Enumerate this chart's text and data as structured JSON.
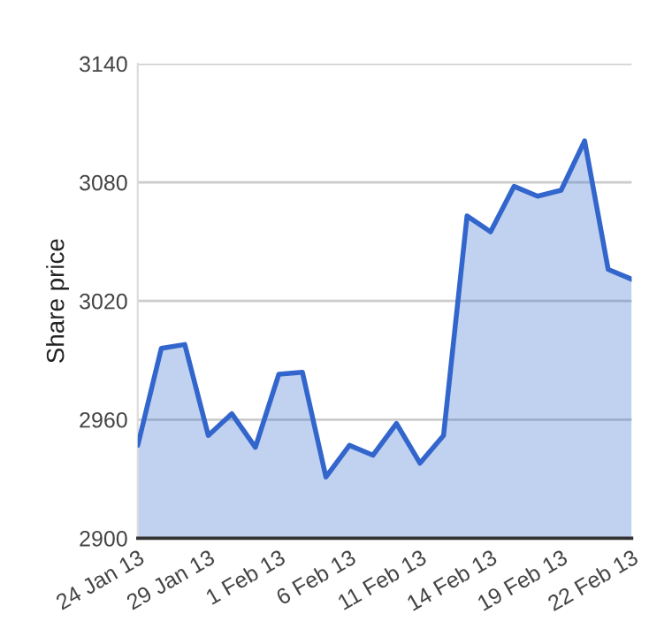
{
  "chart_data": {
    "type": "area",
    "ylabel": "Share price",
    "categories": [
      "24 Jan 13",
      null,
      null,
      "29 Jan 13",
      null,
      null,
      "1 Feb 13",
      null,
      null,
      "6 Feb 13",
      null,
      null,
      "11 Feb 13",
      null,
      null,
      "14 Feb 13",
      null,
      null,
      "19 Feb 13",
      null,
      null,
      "22 Feb 13"
    ],
    "series": [
      {
        "color": "#3366cc",
        "values": [
          2947,
          2996,
          2998,
          2952,
          2963,
          2946,
          2983,
          2984,
          2931,
          2947,
          2942,
          2958,
          2938,
          2952,
          3063,
          3055,
          3078,
          3073,
          3076,
          3101,
          3036,
          3031
        ]
      }
    ],
    "ylim": [
      2900,
      3140
    ],
    "yticks": [
      2900,
      2960,
      3020,
      3080,
      3140
    ],
    "grid": "y",
    "marker": "none",
    "line_style": "solid"
  }
}
